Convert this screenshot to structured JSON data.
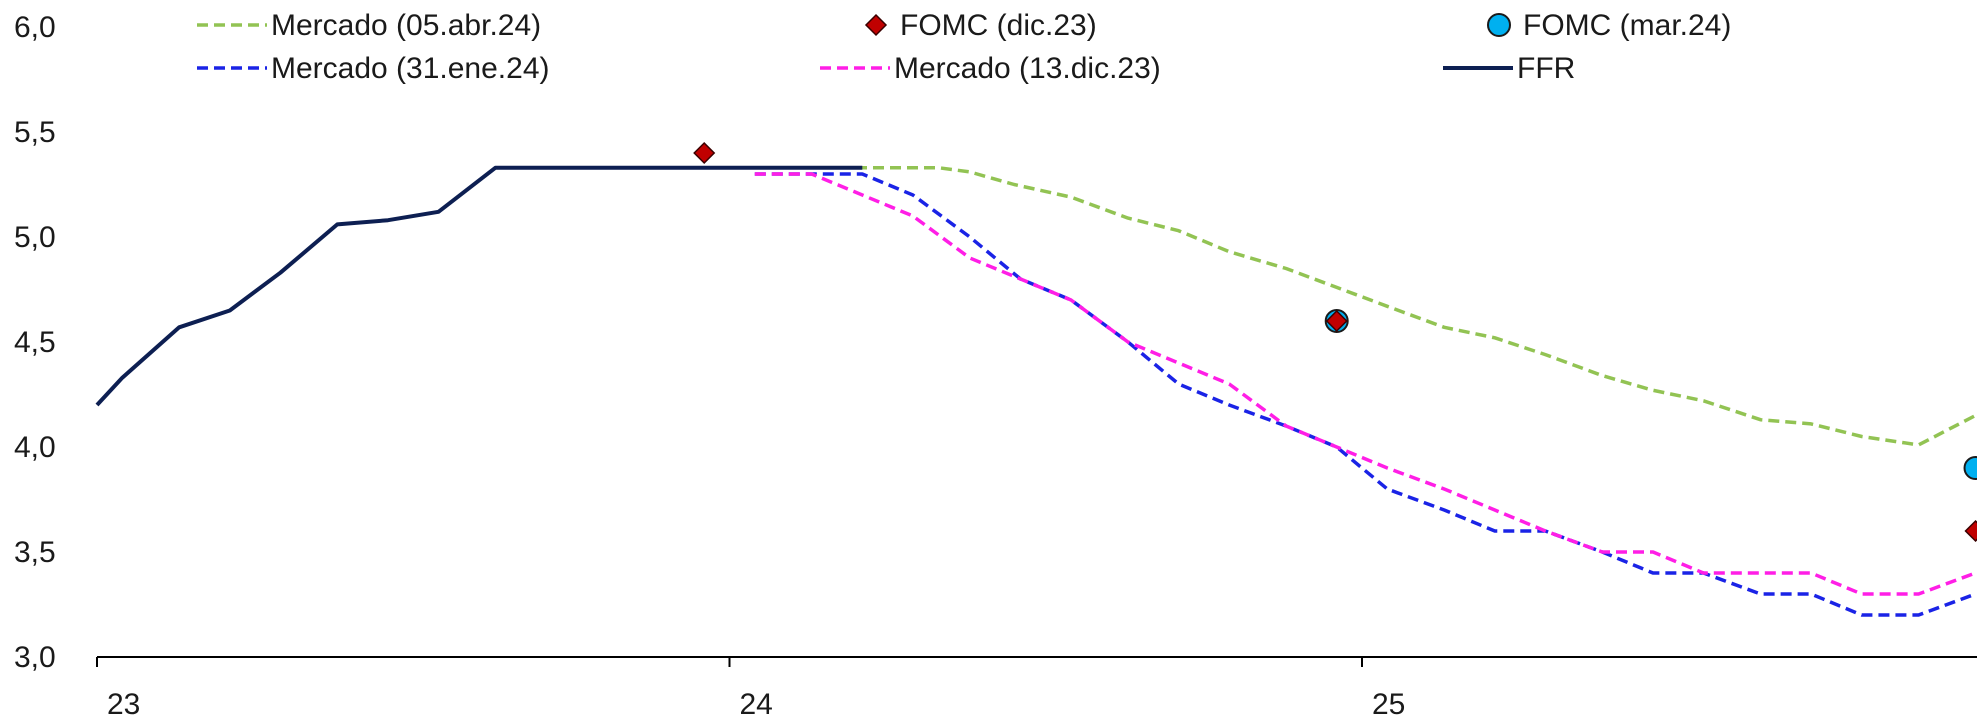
{
  "chart_data": {
    "type": "line",
    "title": "",
    "xlabel": "",
    "ylabel": "",
    "xlim": [
      23.0,
      25.97
    ],
    "ylim": [
      3.0,
      6.0
    ],
    "y_ticks": [
      3.0,
      3.5,
      4.0,
      4.5,
      5.0,
      5.5,
      6.0
    ],
    "y_tick_labels": [
      "3,0",
      "3,5",
      "4,0",
      "4,5",
      "5,0",
      "5,5",
      "6,0"
    ],
    "x_ticks": [
      23,
      24,
      25
    ],
    "x_tick_labels": [
      "23",
      "24",
      "25"
    ],
    "grid": false,
    "legend_position": "top",
    "series": [
      {
        "name": "Mercado (05.abr.24)",
        "kind": "line",
        "style": "dashed",
        "color": "#92c353",
        "points": [
          [
            24.2,
            5.33
          ],
          [
            24.33,
            5.33
          ],
          [
            24.38,
            5.31
          ],
          [
            24.45,
            5.25
          ],
          [
            24.54,
            5.19
          ],
          [
            24.63,
            5.09
          ],
          [
            24.71,
            5.03
          ],
          [
            24.79,
            4.93
          ],
          [
            24.88,
            4.85
          ],
          [
            24.96,
            4.76
          ],
          [
            25.04,
            4.67
          ],
          [
            25.13,
            4.57
          ],
          [
            25.21,
            4.52
          ],
          [
            25.29,
            4.44
          ],
          [
            25.38,
            4.34
          ],
          [
            25.46,
            4.27
          ],
          [
            25.54,
            4.22
          ],
          [
            25.63,
            4.13
          ],
          [
            25.71,
            4.11
          ],
          [
            25.79,
            4.05
          ],
          [
            25.88,
            4.01
          ],
          [
            25.97,
            4.15
          ]
        ]
      },
      {
        "name": "Mercado (31.ene.24)",
        "kind": "line",
        "style": "dashed",
        "color": "#1a23e6",
        "points": [
          [
            24.04,
            5.3
          ],
          [
            24.21,
            5.3
          ],
          [
            24.29,
            5.2
          ],
          [
            24.38,
            5.0
          ],
          [
            24.46,
            4.8
          ],
          [
            24.54,
            4.7
          ],
          [
            24.63,
            4.5
          ],
          [
            24.71,
            4.3
          ],
          [
            24.79,
            4.2
          ],
          [
            24.88,
            4.1
          ],
          [
            24.96,
            4.0
          ],
          [
            25.04,
            3.8
          ],
          [
            25.13,
            3.7
          ],
          [
            25.21,
            3.6
          ],
          [
            25.29,
            3.6
          ],
          [
            25.38,
            3.5
          ],
          [
            25.46,
            3.4
          ],
          [
            25.54,
            3.4
          ],
          [
            25.63,
            3.3
          ],
          [
            25.71,
            3.3
          ],
          [
            25.79,
            3.2
          ],
          [
            25.88,
            3.2
          ],
          [
            25.97,
            3.3
          ]
        ]
      },
      {
        "name": "Mercado (13.dic.23)",
        "kind": "line",
        "style": "dashed",
        "color": "#ff1ee6",
        "points": [
          [
            24.04,
            5.3
          ],
          [
            24.13,
            5.3
          ],
          [
            24.21,
            5.2
          ],
          [
            24.29,
            5.1
          ],
          [
            24.38,
            4.9
          ],
          [
            24.46,
            4.8
          ],
          [
            24.54,
            4.7
          ],
          [
            24.63,
            4.5
          ],
          [
            24.71,
            4.4
          ],
          [
            24.79,
            4.3
          ],
          [
            24.88,
            4.1
          ],
          [
            24.96,
            4.0
          ],
          [
            25.04,
            3.9
          ],
          [
            25.13,
            3.8
          ],
          [
            25.21,
            3.7
          ],
          [
            25.29,
            3.6
          ],
          [
            25.38,
            3.5
          ],
          [
            25.46,
            3.5
          ],
          [
            25.54,
            3.4
          ],
          [
            25.63,
            3.4
          ],
          [
            25.71,
            3.4
          ],
          [
            25.79,
            3.3
          ],
          [
            25.88,
            3.3
          ],
          [
            25.97,
            3.4
          ]
        ]
      },
      {
        "name": "FFR",
        "kind": "line",
        "style": "solid",
        "color": "#0d1f52",
        "points": [
          [
            23.0,
            4.2
          ],
          [
            23.04,
            4.33
          ],
          [
            23.13,
            4.57
          ],
          [
            23.21,
            4.65
          ],
          [
            23.29,
            4.83
          ],
          [
            23.38,
            5.06
          ],
          [
            23.46,
            5.08
          ],
          [
            23.54,
            5.12
          ],
          [
            23.63,
            5.33
          ],
          [
            24.21,
            5.33
          ]
        ]
      },
      {
        "name": "FOMC (dic.23)",
        "kind": "scatter",
        "marker": "diamond",
        "color": "#c00000",
        "points": [
          [
            23.96,
            5.4
          ],
          [
            24.96,
            4.6
          ],
          [
            25.97,
            3.6
          ]
        ]
      },
      {
        "name": "FOMC (mar.24)",
        "kind": "scatter",
        "marker": "circle",
        "color": "#00b0f0",
        "points": [
          [
            24.96,
            4.6
          ],
          [
            25.97,
            3.9
          ]
        ]
      }
    ],
    "legend": [
      {
        "label": "Mercado (05.abr.24)",
        "series": 0
      },
      {
        "label": "FOMC (dic.23)",
        "series": 4
      },
      {
        "label": "FOMC (mar.24)",
        "series": 5
      },
      {
        "label": "Mercado (31.ene.24)",
        "series": 1
      },
      {
        "label": "Mercado (13.dic.23)",
        "series": 2
      },
      {
        "label": "FFR",
        "series": 3
      }
    ]
  }
}
